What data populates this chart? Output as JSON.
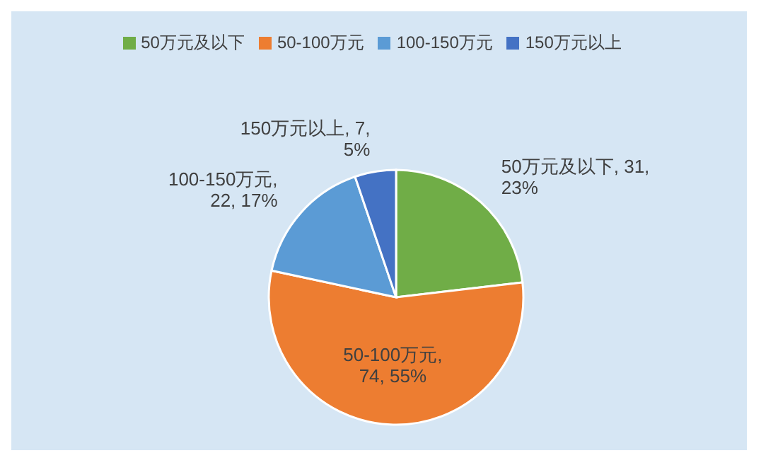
{
  "chart_data": {
    "type": "pie",
    "categories": [
      "50万元及以下",
      "50-100万元",
      "100-150万元",
      "150万元以上"
    ],
    "values": [
      31,
      74,
      22,
      7
    ],
    "colors": [
      "#70ad47",
      "#ed7d31",
      "#5b9bd5",
      "#4472c4"
    ],
    "value_labels": [
      "50万元及以下, 31, 23%",
      "50-100万元, 74, 55%",
      "100-150万元, 22, 17%",
      "150万元以上, 7, 5%"
    ],
    "legend": "top"
  }
}
